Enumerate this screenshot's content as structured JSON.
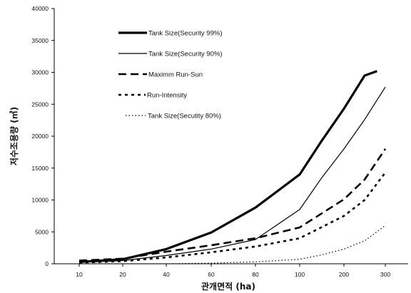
{
  "chart_data": {
    "type": "line",
    "xlabel": "관개면적 (ha)",
    "ylabel": "저수조용량 (㎥)",
    "categories": [
      "10",
      "20",
      "40",
      "60",
      "80",
      "100",
      "200",
      "300"
    ],
    "ylim": [
      0,
      40000
    ],
    "yticks": [
      0,
      5000,
      10000,
      15000,
      20000,
      25000,
      30000,
      35000,
      40000
    ],
    "grid": false,
    "legend_position": "top-left",
    "series": [
      {
        "name": "Tank Size(Security 99%)",
        "style": "thick-solid",
        "x": [
          10,
          20,
          40,
          60,
          80,
          100,
          150,
          200,
          250,
          280
        ],
        "y": [
          300,
          700,
          2300,
          4900,
          8800,
          14000,
          19300,
          24300,
          29500,
          30200
        ]
      },
      {
        "name": "Tank Size(Security 90%)",
        "style": "thin-solid",
        "x": [
          10,
          20,
          40,
          60,
          80,
          100,
          150,
          200,
          250,
          300
        ],
        "y": [
          200,
          500,
          1300,
          2300,
          3800,
          8500,
          13500,
          18000,
          22600,
          27700
        ]
      },
      {
        "name": "Maximm Run-Sun",
        "style": "long-dash",
        "x": [
          10,
          20,
          40,
          60,
          80,
          100,
          200,
          250,
          300
        ],
        "y": [
          500,
          800,
          1900,
          2900,
          4000,
          5700,
          10100,
          13200,
          18000
        ]
      },
      {
        "name": "Run-Intensity",
        "style": "short-dash",
        "x": [
          10,
          20,
          40,
          60,
          80,
          100,
          200,
          250,
          300
        ],
        "y": [
          200,
          400,
          1000,
          1800,
          2700,
          4000,
          7500,
          10000,
          14300
        ]
      },
      {
        "name": "Tank Size(Secutity 80%)",
        "style": "dotted",
        "x": [
          10,
          20,
          40,
          60,
          80,
          100,
          150,
          200,
          250,
          300
        ],
        "y": [
          0,
          0,
          0,
          100,
          300,
          700,
          1400,
          2300,
          3600,
          6000
        ]
      }
    ]
  }
}
